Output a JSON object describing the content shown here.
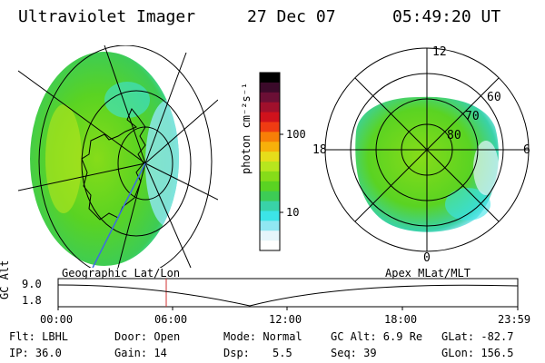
{
  "header": {
    "instrument": "Ultraviolet Imager",
    "date": "27 Dec 07",
    "time": "05:49:20 UT"
  },
  "colorbar": {
    "unit_label": "photon cm⁻²s⁻¹",
    "tick_labels": [
      "100",
      "10"
    ],
    "colors": [
      "#000000",
      "#3b0a2a",
      "#6b0f35",
      "#a0102c",
      "#d0121c",
      "#ef3b12",
      "#f77e07",
      "#f7b00a",
      "#e6dd1a",
      "#b7e61e",
      "#86dc19",
      "#5ad322",
      "#3dcc55",
      "#39d2a8",
      "#3ce4e7",
      "#90e7f2",
      "#e6f5fb",
      "#ffffff"
    ]
  },
  "polar_plot": {
    "mlt_labels": {
      "top": "12",
      "bottom": "0",
      "left": "18",
      "right": "6"
    },
    "lat_labels": [
      "60",
      "70",
      "80"
    ]
  },
  "labels": {
    "geographic": "Geographic Lat/Lon",
    "apex": "Apex MLat/MLT"
  },
  "timeline": {
    "axis_label": "GC Alt",
    "y_max": "9.0",
    "y_min": "1.8",
    "x_ticks": [
      "00:00",
      "06:00",
      "12:00",
      "18:00",
      "23:59"
    ]
  },
  "info": {
    "filter": "Flt: LBHL",
    "ip": "IP: 36.0",
    "door": "Door: Open",
    "gain": "Gain: 14",
    "mode": "Mode: Normal",
    "dsp_label": "Dsp:",
    "dsp_value": "5.5",
    "gc_alt": "GC Alt: 6.9 Re",
    "seq": "Seq: 39",
    "glat": "GLat: -82.7",
    "glon": "GLon: 156.5"
  }
}
